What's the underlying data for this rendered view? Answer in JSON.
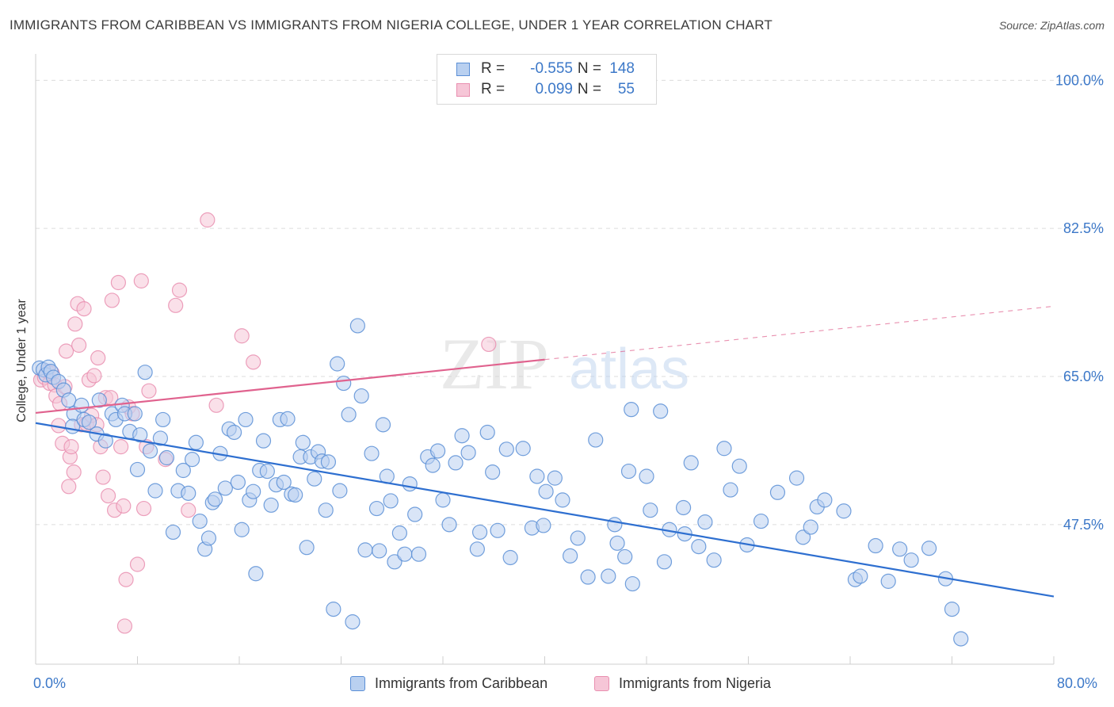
{
  "title": "IMMIGRANTS FROM CARIBBEAN VS IMMIGRANTS FROM NIGERIA COLLEGE, UNDER 1 YEAR CORRELATION CHART",
  "source": "Source: ZipAtlas.com",
  "watermark": {
    "zip": "ZIP",
    "atlas": "atlas"
  },
  "colors": {
    "blue": "#5b8fd6",
    "blue_fill": "#b9d0f0",
    "blue_line": "#2e6fd0",
    "pink": "#e98fb0",
    "pink_fill": "#f6c6d7",
    "pink_line": "#e0628e",
    "axis_text": "#3c78c8"
  },
  "legend_top": {
    "rows": [
      {
        "r_label": "R =",
        "r_value": "-0.555",
        "n_label": "N =",
        "n_value": "148"
      },
      {
        "r_label": "R =",
        "r_value": "0.099",
        "n_label": "N =",
        "n_value": "55"
      }
    ]
  },
  "legend_bottom": {
    "items": [
      {
        "label": "Immigrants from Caribbean"
      },
      {
        "label": "Immigrants from Nigeria"
      }
    ]
  },
  "chart_data": {
    "type": "scatter",
    "title": "IMMIGRANTS FROM CARIBBEAN VS IMMIGRANTS FROM NIGERIA COLLEGE, UNDER 1 YEAR CORRELATION CHART",
    "xlabel": "",
    "ylabel": "College, Under 1 year",
    "xlim": [
      0,
      80
    ],
    "ylim": [
      31,
      102
    ],
    "x_tick_labels": [
      "0.0%",
      "80.0%"
    ],
    "y_ticks": [
      47.5,
      65.0,
      82.5,
      100.0
    ],
    "y_tick_labels": [
      "47.5%",
      "65.0%",
      "82.5%",
      "100.0%"
    ],
    "grid": true,
    "legend_position": "top-center",
    "series": [
      {
        "name": "Immigrants from Caribbean",
        "r": -0.555,
        "n": 148,
        "trend": {
          "x": [
            0,
            80
          ],
          "y": [
            59.5,
            39.0
          ]
        },
        "points": [
          [
            0.3,
            66.0
          ],
          [
            0.6,
            65.8
          ],
          [
            0.8,
            65.2
          ],
          [
            1.0,
            66.1
          ],
          [
            1.2,
            65.6
          ],
          [
            1.4,
            64.9
          ],
          [
            1.8,
            64.4
          ],
          [
            2.2,
            63.4
          ],
          [
            2.6,
            62.2
          ],
          [
            3.0,
            60.6
          ],
          [
            2.9,
            59.1
          ],
          [
            3.6,
            61.6
          ],
          [
            3.8,
            59.9
          ],
          [
            4.2,
            59.6
          ],
          [
            4.8,
            58.2
          ],
          [
            5.0,
            62.2
          ],
          [
            5.5,
            57.4
          ],
          [
            6.0,
            60.6
          ],
          [
            6.3,
            59.9
          ],
          [
            6.8,
            61.6
          ],
          [
            7.0,
            60.6
          ],
          [
            7.4,
            58.5
          ],
          [
            7.8,
            60.6
          ],
          [
            8.0,
            54.0
          ],
          [
            8.2,
            58.1
          ],
          [
            8.6,
            65.5
          ],
          [
            9.0,
            56.2
          ],
          [
            9.4,
            51.5
          ],
          [
            9.8,
            57.7
          ],
          [
            10.0,
            59.9
          ],
          [
            10.3,
            55.4
          ],
          [
            10.8,
            46.6
          ],
          [
            11.2,
            51.5
          ],
          [
            11.6,
            53.9
          ],
          [
            12.0,
            51.2
          ],
          [
            12.3,
            55.2
          ],
          [
            12.6,
            57.2
          ],
          [
            12.9,
            47.9
          ],
          [
            13.3,
            44.6
          ],
          [
            13.6,
            45.9
          ],
          [
            13.9,
            50.1
          ],
          [
            14.1,
            50.5
          ],
          [
            14.5,
            55.9
          ],
          [
            14.9,
            51.8
          ],
          [
            15.2,
            58.8
          ],
          [
            15.6,
            58.4
          ],
          [
            15.9,
            52.5
          ],
          [
            16.2,
            46.9
          ],
          [
            16.5,
            59.9
          ],
          [
            16.8,
            50.4
          ],
          [
            17.1,
            51.4
          ],
          [
            17.3,
            41.7
          ],
          [
            17.6,
            53.9
          ],
          [
            17.9,
            57.4
          ],
          [
            18.2,
            53.8
          ],
          [
            18.5,
            49.8
          ],
          [
            18.9,
            52.2
          ],
          [
            19.2,
            59.9
          ],
          [
            19.5,
            52.5
          ],
          [
            19.8,
            60.0
          ],
          [
            20.1,
            51.1
          ],
          [
            20.4,
            51.0
          ],
          [
            20.8,
            55.5
          ],
          [
            21.0,
            57.2
          ],
          [
            21.3,
            44.8
          ],
          [
            21.6,
            55.5
          ],
          [
            21.9,
            52.9
          ],
          [
            22.2,
            56.1
          ],
          [
            22.5,
            55.0
          ],
          [
            22.8,
            49.2
          ],
          [
            23.0,
            54.9
          ],
          [
            23.4,
            37.5
          ],
          [
            23.7,
            66.5
          ],
          [
            23.9,
            51.5
          ],
          [
            24.2,
            64.2
          ],
          [
            24.6,
            60.5
          ],
          [
            24.9,
            36.0
          ],
          [
            25.3,
            71.0
          ],
          [
            25.6,
            62.7
          ],
          [
            25.9,
            44.5
          ],
          [
            26.4,
            55.9
          ],
          [
            26.8,
            49.4
          ],
          [
            27.0,
            44.4
          ],
          [
            27.3,
            59.3
          ],
          [
            27.6,
            53.2
          ],
          [
            27.9,
            50.3
          ],
          [
            28.2,
            43.1
          ],
          [
            28.6,
            46.5
          ],
          [
            29.0,
            44.0
          ],
          [
            29.4,
            52.3
          ],
          [
            29.8,
            48.7
          ],
          [
            30.1,
            44.0
          ],
          [
            30.8,
            55.5
          ],
          [
            31.2,
            54.5
          ],
          [
            31.6,
            56.2
          ],
          [
            32.0,
            50.4
          ],
          [
            32.5,
            47.5
          ],
          [
            33.0,
            54.8
          ],
          [
            33.5,
            58.0
          ],
          [
            34.0,
            56.0
          ],
          [
            34.7,
            44.6
          ],
          [
            34.9,
            46.6
          ],
          [
            35.5,
            58.4
          ],
          [
            35.9,
            53.7
          ],
          [
            36.3,
            46.8
          ],
          [
            37.0,
            56.4
          ],
          [
            37.3,
            43.6
          ],
          [
            38.3,
            56.5
          ],
          [
            39.0,
            47.1
          ],
          [
            39.4,
            53.2
          ],
          [
            39.9,
            47.4
          ],
          [
            40.1,
            51.4
          ],
          [
            40.8,
            53.0
          ],
          [
            41.4,
            50.4
          ],
          [
            42.0,
            43.8
          ],
          [
            42.6,
            45.9
          ],
          [
            43.4,
            41.3
          ],
          [
            44.0,
            57.5
          ],
          [
            45.0,
            41.4
          ],
          [
            45.5,
            47.5
          ],
          [
            45.7,
            45.3
          ],
          [
            46.3,
            43.7
          ],
          [
            46.6,
            53.8
          ],
          [
            46.8,
            61.1
          ],
          [
            46.9,
            40.5
          ],
          [
            48.0,
            53.2
          ],
          [
            48.3,
            49.2
          ],
          [
            49.1,
            60.9
          ],
          [
            49.4,
            43.1
          ],
          [
            49.8,
            46.9
          ],
          [
            50.9,
            49.5
          ],
          [
            51.0,
            46.4
          ],
          [
            51.5,
            54.8
          ],
          [
            52.1,
            44.9
          ],
          [
            52.6,
            47.8
          ],
          [
            53.3,
            43.3
          ],
          [
            54.1,
            56.5
          ],
          [
            54.6,
            51.6
          ],
          [
            55.3,
            54.4
          ],
          [
            55.9,
            45.1
          ],
          [
            57.0,
            47.9
          ],
          [
            58.3,
            51.3
          ],
          [
            59.8,
            53.0
          ],
          [
            60.3,
            46.0
          ],
          [
            60.9,
            47.2
          ],
          [
            61.4,
            49.6
          ],
          [
            62.0,
            50.4
          ],
          [
            63.5,
            49.1
          ],
          [
            64.4,
            41.0
          ],
          [
            64.8,
            41.4
          ],
          [
            66.0,
            45.0
          ],
          [
            67.0,
            40.8
          ],
          [
            67.9,
            44.6
          ],
          [
            68.8,
            43.3
          ],
          [
            70.2,
            44.7
          ],
          [
            71.5,
            41.1
          ],
          [
            72.0,
            37.5
          ],
          [
            72.7,
            34.0
          ]
        ]
      },
      {
        "name": "Immigrants from Nigeria",
        "r": 0.099,
        "n": 55,
        "trend": {
          "x": [
            0,
            40
          ],
          "y": [
            60.7,
            67.0
          ]
        },
        "points": [
          [
            0.4,
            64.6
          ],
          [
            0.7,
            64.9
          ],
          [
            0.9,
            65.6
          ],
          [
            1.1,
            64.2
          ],
          [
            1.3,
            65.4
          ],
          [
            1.5,
            64.0
          ],
          [
            1.6,
            62.7
          ],
          [
            1.8,
            59.2
          ],
          [
            1.9,
            61.8
          ],
          [
            2.1,
            57.1
          ],
          [
            2.3,
            63.8
          ],
          [
            2.4,
            68.0
          ],
          [
            2.6,
            52.0
          ],
          [
            2.7,
            55.5
          ],
          [
            2.8,
            56.7
          ],
          [
            3.0,
            53.7
          ],
          [
            3.1,
            71.2
          ],
          [
            3.3,
            73.6
          ],
          [
            3.4,
            68.7
          ],
          [
            3.6,
            59.3
          ],
          [
            3.8,
            73.0
          ],
          [
            4.0,
            59.4
          ],
          [
            4.2,
            64.6
          ],
          [
            4.4,
            60.4
          ],
          [
            4.6,
            65.1
          ],
          [
            4.8,
            59.3
          ],
          [
            4.9,
            67.2
          ],
          [
            5.1,
            56.7
          ],
          [
            5.3,
            53.1
          ],
          [
            5.5,
            62.5
          ],
          [
            5.7,
            50.9
          ],
          [
            5.9,
            62.5
          ],
          [
            6.0,
            74.0
          ],
          [
            6.2,
            49.2
          ],
          [
            6.5,
            76.1
          ],
          [
            6.7,
            56.7
          ],
          [
            6.9,
            49.7
          ],
          [
            7.0,
            35.5
          ],
          [
            7.1,
            41.0
          ],
          [
            7.3,
            61.4
          ],
          [
            7.6,
            60.6
          ],
          [
            8.0,
            42.8
          ],
          [
            8.3,
            76.3
          ],
          [
            8.5,
            49.4
          ],
          [
            8.7,
            56.7
          ],
          [
            8.9,
            63.3
          ],
          [
            10.2,
            55.2
          ],
          [
            11.0,
            73.4
          ],
          [
            11.3,
            75.2
          ],
          [
            12.0,
            49.2
          ],
          [
            13.5,
            83.5
          ],
          [
            14.2,
            61.6
          ],
          [
            16.2,
            69.8
          ],
          [
            17.1,
            66.7
          ],
          [
            35.6,
            68.8
          ]
        ]
      }
    ]
  }
}
